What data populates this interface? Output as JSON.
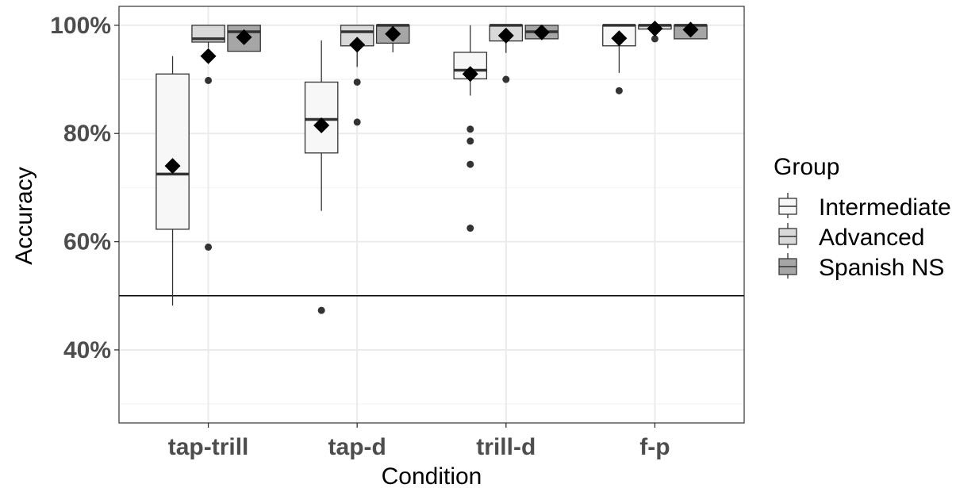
{
  "chart_data": {
    "type": "box",
    "xlabel": "Condition",
    "ylabel": "Accuracy",
    "categories": [
      "tap-trill",
      "tap-d",
      "trill-d",
      "f-p"
    ],
    "yticks": [
      40,
      60,
      80,
      100
    ],
    "ytick_labels": [
      "40%",
      "60%",
      "80%",
      "100%"
    ],
    "ylim": [
      26.5,
      103.5
    ],
    "reference_line": 50,
    "grid": true,
    "legend": {
      "title": "Group",
      "position": "right"
    },
    "series": [
      {
        "name": "Intermediate",
        "fill": "#f7f7f7",
        "boxes": [
          {
            "category": "tap-trill",
            "whisker_low": 48.2,
            "q1": 62.3,
            "median": 72.5,
            "q3": 91.0,
            "whisker_high": 94.3,
            "mean": 74.0,
            "outliers": []
          },
          {
            "category": "tap-d",
            "whisker_low": 65.7,
            "q1": 76.4,
            "median": 82.6,
            "q3": 89.5,
            "whisker_high": 97.2,
            "mean": 81.5,
            "outliers": [
              47.3
            ]
          },
          {
            "category": "trill-d",
            "whisker_low": 87.0,
            "q1": 90.1,
            "median": 91.7,
            "q3": 95.0,
            "whisker_high": 100.0,
            "mean": 91.0,
            "outliers": [
              80.8,
              78.6,
              74.3,
              62.5
            ]
          },
          {
            "category": "f-p",
            "whisker_low": 91.2,
            "q1": 96.2,
            "median": 100.0,
            "q3": 100.0,
            "whisker_high": 100.0,
            "mean": 97.6,
            "outliers": [
              87.9
            ]
          }
        ]
      },
      {
        "name": "Advanced",
        "fill": "#d9d9d9",
        "boxes": [
          {
            "category": "tap-trill",
            "whisker_low": 95.8,
            "q1": 96.9,
            "median": 97.5,
            "q3": 100.0,
            "whisker_high": 100.0,
            "mean": 94.3,
            "outliers": [
              89.8,
              59.0
            ]
          },
          {
            "category": "tap-d",
            "whisker_low": 92.3,
            "q1": 96.2,
            "median": 98.8,
            "q3": 100.0,
            "whisker_high": 100.0,
            "mean": 96.4,
            "outliers": [
              89.5,
              82.1
            ]
          },
          {
            "category": "trill-d",
            "whisker_low": 94.9,
            "q1": 97.1,
            "median": 100.0,
            "q3": 100.0,
            "whisker_high": 100.0,
            "mean": 98.1,
            "outliers": [
              90.0
            ]
          },
          {
            "category": "f-p",
            "whisker_low": 98.5,
            "q1": 99.3,
            "median": 100.0,
            "q3": 100.0,
            "whisker_high": 100.0,
            "mean": 99.4,
            "outliers": [
              97.5
            ]
          }
        ]
      },
      {
        "name": "Spanish NS",
        "fill": "#a6a6a6",
        "boxes": [
          {
            "category": "tap-trill",
            "whisker_low": 95.2,
            "q1": 95.2,
            "median": 98.8,
            "q3": 100.0,
            "whisker_high": 100.0,
            "mean": 97.8,
            "outliers": []
          },
          {
            "category": "tap-d",
            "whisker_low": 95.0,
            "q1": 96.7,
            "median": 100.0,
            "q3": 100.0,
            "whisker_high": 100.0,
            "mean": 98.4,
            "outliers": []
          },
          {
            "category": "trill-d",
            "whisker_low": 97.5,
            "q1": 97.5,
            "median": 98.8,
            "q3": 100.0,
            "whisker_high": 100.0,
            "mean": 98.7,
            "outliers": []
          },
          {
            "category": "f-p",
            "whisker_low": 97.5,
            "q1": 97.5,
            "median": 100.0,
            "q3": 100.0,
            "whisker_high": 100.0,
            "mean": 99.2,
            "outliers": []
          }
        ]
      }
    ]
  }
}
